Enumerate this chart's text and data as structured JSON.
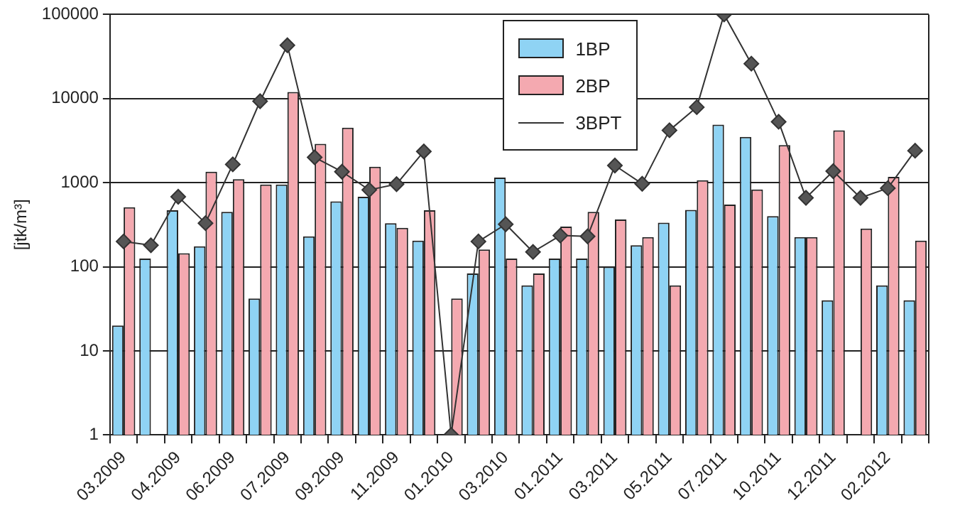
{
  "chart_data": {
    "type": "bar",
    "ylabel": "[jtk/m³]",
    "categories": [
      "03.2009",
      null,
      "04.2009",
      null,
      "06.2009",
      null,
      "07.2009",
      null,
      "09.2009",
      null,
      "11.2009",
      null,
      "01.2010",
      null,
      "03.2010",
      null,
      "01.2011",
      null,
      "03.2011",
      null,
      "05.2011",
      null,
      "07.2011",
      null,
      "10.2011",
      null,
      "12.2011",
      null,
      "02.2012",
      null
    ],
    "series": [
      {
        "name": "1BP",
        "color": "#8fd3f4",
        "values": [
          20,
          125,
          470,
          175,
          450,
          42,
          950,
          230,
          600,
          680,
          330,
          205,
          null,
          83,
          1150,
          60,
          125,
          125,
          100,
          180,
          335,
          475,
          4900,
          3500,
          400,
          225,
          40,
          null,
          60,
          40
        ]
      },
      {
        "name": "2BP",
        "color": "#f4a9b0",
        "values": [
          510,
          null,
          145,
          1350,
          1100,
          950,
          12000,
          2900,
          4500,
          1550,
          290,
          470,
          42,
          160,
          125,
          83,
          300,
          450,
          365,
          225,
          60,
          1070,
          550,
          830,
          2800,
          225,
          4200,
          285,
          1170,
          205
        ]
      },
      {
        "name": "3BPT",
        "type": "line",
        "color": "#333333",
        "marker": "diamond",
        "values": [
          200,
          180,
          680,
          330,
          1650,
          9300,
          43000,
          2000,
          1350,
          820,
          960,
          2350,
          1,
          200,
          320,
          150,
          235,
          230,
          1600,
          970,
          4200,
          7900,
          100000,
          26000,
          5300,
          660,
          1370,
          660,
          860,
          2400
        ]
      }
    ],
    "log": "y",
    "ylim": [
      1,
      100000
    ],
    "yticks": [
      1,
      10,
      100,
      1000,
      10000,
      100000
    ],
    "grid": "y",
    "legend": "top"
  }
}
